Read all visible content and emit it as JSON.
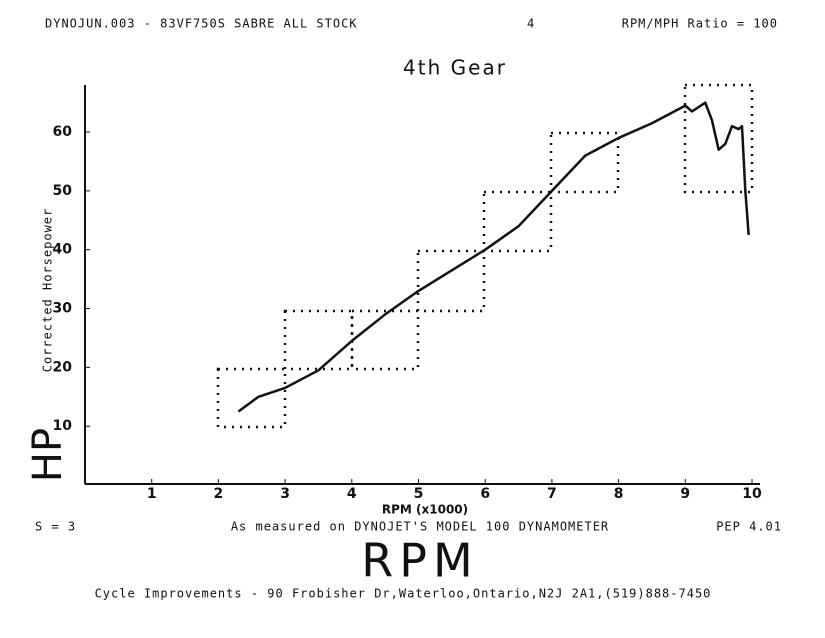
{
  "chart_data": {
    "type": "line",
    "header_left": "DYNOJUN.003 - 83VF750S SABRE ALL STOCK",
    "header_mid": "4",
    "header_right": "RPM/MPH Ratio = 100",
    "title": "4th Gear",
    "y_label": "Corrected Horsepower",
    "y_big_label": "HP",
    "x_label": "RPM (x1000)",
    "x_big_label": "RPM",
    "smoothing": "S = 3",
    "note": "As measured on DYNOJET'S MODEL 100 DYNAMOMETER",
    "version": "PEP 4.01",
    "footer": "Cycle Improvements - 90 Frobisher Dr,Waterloo,Ontario,N2J 2A1,(519)888-7450",
    "x": [
      2.3,
      2.6,
      3.0,
      3.5,
      4.0,
      4.5,
      5.0,
      5.5,
      6.0,
      6.5,
      7.0,
      7.5,
      8.0,
      8.5,
      9.0,
      9.1,
      9.3,
      9.4,
      9.5,
      9.6,
      9.7,
      9.8,
      9.85,
      9.9,
      9.95
    ],
    "series": [
      {
        "name": "HP",
        "color": "#111111",
        "values": [
          12.5,
          15,
          16.5,
          19.5,
          24.5,
          29,
          33,
          36.5,
          40,
          44,
          50,
          56,
          59,
          61.5,
          64.5,
          63.5,
          65,
          62,
          57,
          58,
          61,
          60.5,
          61,
          50,
          42.5
        ]
      }
    ],
    "xlim": [
      0,
      10
    ],
    "xticks": [
      1,
      2,
      3,
      4,
      5,
      6,
      7,
      8,
      9,
      10
    ],
    "ylim": [
      0,
      68
    ],
    "yticks": [
      10,
      20,
      30,
      40,
      50,
      60
    ]
  }
}
